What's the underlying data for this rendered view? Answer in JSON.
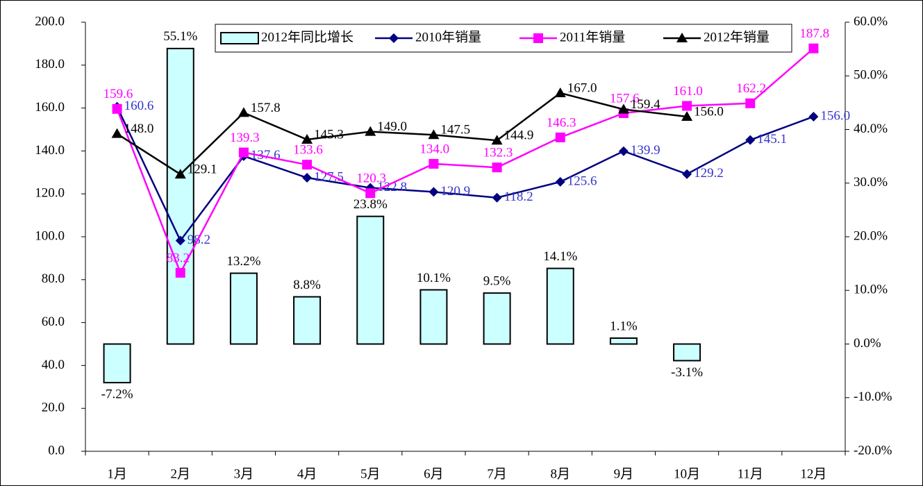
{
  "chart_data": {
    "type": "bar-line",
    "categories": [
      "1月",
      "2月",
      "3月",
      "4月",
      "5月",
      "6月",
      "7月",
      "8月",
      "9月",
      "10月",
      "11月",
      "12月"
    ],
    "series": [
      {
        "name": "2012年同比增长",
        "type": "bar",
        "axis": "y2",
        "color": "#ccffff",
        "values": [
          -7.2,
          55.1,
          13.2,
          8.8,
          23.8,
          10.1,
          9.5,
          14.1,
          1.1,
          -3.1,
          null,
          null
        ],
        "value_labels": [
          "-7.2%",
          "55.1%",
          "13.2%",
          "8.8%",
          "23.8%",
          "10.1%",
          "9.5%",
          "14.1%",
          "1.1%",
          "-3.1%",
          null,
          null
        ]
      },
      {
        "name": "2010年销量",
        "type": "line",
        "marker": "diamond",
        "color": "#000080",
        "label_color": "#3333cc",
        "values": [
          160.6,
          98.2,
          137.6,
          127.5,
          122.8,
          120.9,
          118.2,
          125.6,
          139.9,
          129.2,
          145.1,
          156.0
        ],
        "value_labels": [
          "160.6",
          "98.2",
          "137.6",
          "127.5",
          "122.8",
          "120.9",
          "118.2",
          "125.6",
          "139.9",
          "129.2",
          "145.1",
          "156.0"
        ]
      },
      {
        "name": "2011年销量",
        "type": "line",
        "marker": "square",
        "color": "#ff00ff",
        "label_color": "#ff00ff",
        "values": [
          159.6,
          83.2,
          139.3,
          133.6,
          120.3,
          134.0,
          132.3,
          146.3,
          157.6,
          161.0,
          162.2,
          187.8
        ],
        "value_labels": [
          "159.6",
          "83.2",
          "139.3",
          "133.6",
          "120.3",
          "134.0",
          "132.3",
          "146.3",
          "157.6",
          "161.0",
          "162.2",
          "187.8"
        ]
      },
      {
        "name": "2012年销量",
        "type": "line",
        "marker": "triangle",
        "color": "#000000",
        "label_color": "#000000",
        "values": [
          148.0,
          129.1,
          157.8,
          145.3,
          149.0,
          147.5,
          144.9,
          167.0,
          159.4,
          156.0,
          null,
          null
        ],
        "value_labels": [
          "148.0",
          "129.1",
          "157.8",
          "145.3",
          "149.0",
          "147.5",
          "144.9",
          "167.0",
          "159.4",
          "156.0",
          null,
          null
        ]
      }
    ],
    "ylim": [
      0,
      200
    ],
    "yticks": [
      {
        "value": 0,
        "label": "0.0"
      },
      {
        "value": 20,
        "label": "20.0"
      },
      {
        "value": 40,
        "label": "40.0"
      },
      {
        "value": 60,
        "label": "60.0"
      },
      {
        "value": 80,
        "label": "80.0"
      },
      {
        "value": 100,
        "label": "100.0"
      },
      {
        "value": 120,
        "label": "120.0"
      },
      {
        "value": 140,
        "label": "140.0"
      },
      {
        "value": 160,
        "label": "160.0"
      },
      {
        "value": 180,
        "label": "180.0"
      },
      {
        "value": 200,
        "label": "200.0"
      }
    ],
    "y2lim": [
      -20,
      60
    ],
    "y2ticks": [
      {
        "value": -20,
        "label": "-20.0%"
      },
      {
        "value": -10,
        "label": "-10.0%"
      },
      {
        "value": 0,
        "label": "0.0%"
      },
      {
        "value": 10,
        "label": "10.0%"
      },
      {
        "value": 20,
        "label": "20.0%"
      },
      {
        "value": 30,
        "label": "30.0%"
      },
      {
        "value": 40,
        "label": "40.0%"
      },
      {
        "value": 50,
        "label": "50.0%"
      },
      {
        "value": 60,
        "label": "60.0%"
      }
    ],
    "grid": false,
    "legend": "top"
  }
}
